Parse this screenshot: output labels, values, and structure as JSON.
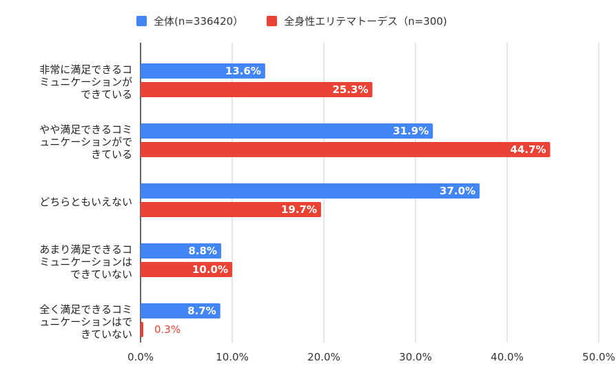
{
  "chart_data": {
    "type": "bar",
    "orientation": "horizontal",
    "title": "",
    "xlabel": "",
    "ylabel": "",
    "xlim": [
      0,
      50
    ],
    "grid": true,
    "legend_position": "top",
    "categories": [
      [
        "非常に満足できるコ",
        "ミュニケーションが",
        "できている"
      ],
      [
        "やや満足できるコミ",
        "ュニケーションがで",
        "きている"
      ],
      [
        "どちらともいえない"
      ],
      [
        "あまり満足できるコ",
        "ミュニケーションは",
        "できていない"
      ],
      [
        "全く満足できるコミ",
        "ュニケーションはで",
        "きていない"
      ]
    ],
    "x_ticks": [
      0,
      10,
      20,
      30,
      40,
      50
    ],
    "x_tick_labels": [
      "0.0%",
      "10.0%",
      "20.0%",
      "30.0%",
      "40.0%",
      "50.0%"
    ],
    "series": [
      {
        "name": "全体(n=336420）",
        "color": "#4285f4",
        "values": [
          13.6,
          31.9,
          37.0,
          8.8,
          8.7
        ],
        "labels": [
          "13.6%",
          "31.9%",
          "37.0%",
          "8.8%",
          "8.7%"
        ]
      },
      {
        "name": "全身性エリテマトーデス（n=300)",
        "color": "#ea4335",
        "values": [
          25.3,
          44.7,
          19.7,
          10.0,
          0.3
        ],
        "labels": [
          "25.3%",
          "44.7%",
          "19.7%",
          "10.0%",
          "0.3%"
        ]
      }
    ]
  }
}
